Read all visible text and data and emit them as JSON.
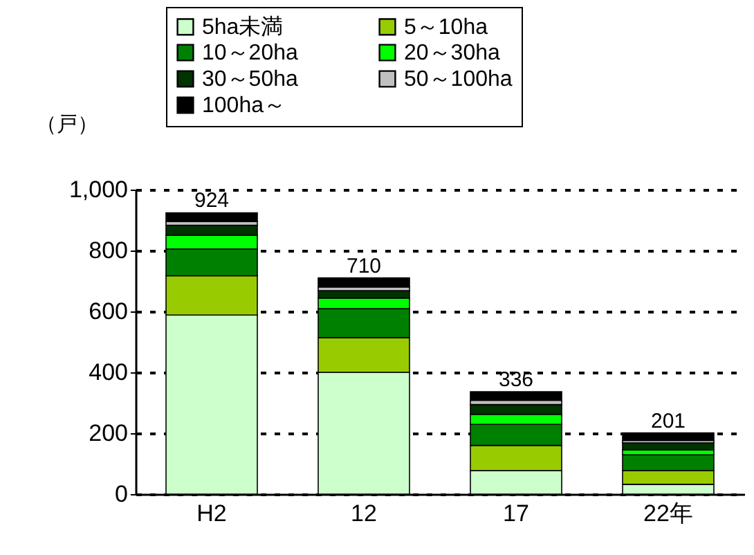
{
  "chart_data": {
    "type": "bar",
    "stacked": true,
    "ylabel": "（戸）",
    "categories": [
      "H2",
      "12",
      "17",
      "22年"
    ],
    "series": [
      {
        "name": "5ha未満",
        "color": "#ccffcc",
        "values": [
          588,
          400,
          77,
          32
        ]
      },
      {
        "name": "5～10ha",
        "color": "#99cc00",
        "values": [
          129,
          114,
          83,
          45
        ]
      },
      {
        "name": "10～20ha",
        "color": "#008000",
        "values": [
          88,
          95,
          69,
          52
        ]
      },
      {
        "name": "20～30ha",
        "color": "#00ff00",
        "values": [
          45,
          35,
          33,
          16
        ]
      },
      {
        "name": "30～50ha",
        "color": "#003300",
        "values": [
          33,
          24,
          32,
          23
        ]
      },
      {
        "name": "50～100ha",
        "color": "#c0c0c0",
        "values": [
          12,
          12,
          14,
          8
        ]
      },
      {
        "name": "100ha～",
        "color": "#000000",
        "values": [
          29,
          30,
          28,
          25
        ]
      }
    ],
    "totals": [
      "924",
      "710",
      "336",
      "201"
    ],
    "ylim": [
      0,
      1000
    ],
    "yticks": [
      0,
      200,
      400,
      600,
      800,
      {
        "value": 1000,
        "label": "1,000"
      }
    ],
    "grid": "y",
    "legend": "top"
  }
}
